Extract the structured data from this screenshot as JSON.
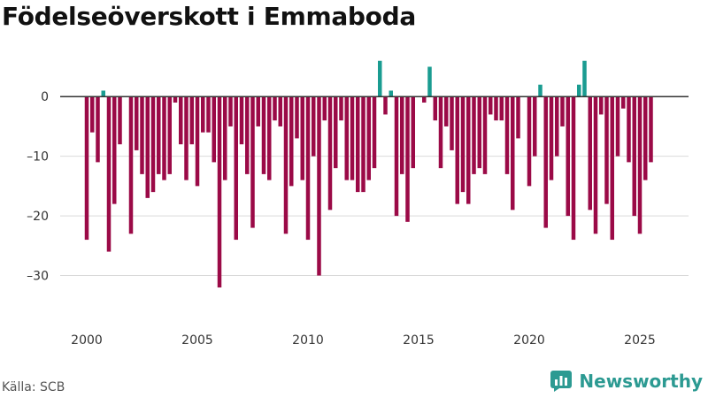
{
  "chart_data": {
    "type": "bar",
    "title": "Födelseöverskott i Emmaboda",
    "source": "Källa: SCB",
    "brand": "Newsworthy",
    "xlabel": "",
    "ylabel": "",
    "x_start": 2000.0,
    "x_step": 0.25,
    "xlim": [
      1998.8,
      2027.2
    ],
    "ylim": [
      -36,
      7
    ],
    "y_ticks": [
      0,
      -10,
      -20,
      -30
    ],
    "y_tick_labels": [
      "0",
      "–10",
      "–20",
      "–30"
    ],
    "x_ticks": [
      2000,
      2005,
      2010,
      2015,
      2020,
      2025
    ],
    "x_tick_labels": [
      "2000",
      "2005",
      "2010",
      "2015",
      "2020",
      "2025"
    ],
    "positive_color": "#1a9c91",
    "negative_color": "#9b0a47",
    "values": [
      -24,
      -6,
      -11,
      1,
      -26,
      -18,
      -8,
      0,
      -23,
      -9,
      -13,
      -17,
      -16,
      -13,
      -14,
      -13,
      -1,
      -8,
      -14,
      -8,
      -15,
      -6,
      -6,
      -11,
      -32,
      -14,
      -5,
      -24,
      -8,
      -13,
      -22,
      -5,
      -13,
      -14,
      -4,
      -5,
      -23,
      -15,
      -7,
      -14,
      -24,
      -10,
      -30,
      -4,
      -19,
      -12,
      -4,
      -14,
      -14,
      -16,
      -16,
      -14,
      -12,
      6,
      -3,
      1,
      -20,
      -13,
      -21,
      -12,
      0,
      -1,
      5,
      -4,
      -12,
      -5,
      -9,
      -18,
      -16,
      -18,
      -13,
      -12,
      -13,
      -3,
      -4,
      -4,
      -13,
      -19,
      -7,
      0,
      -15,
      -10,
      2,
      -22,
      -14,
      -10,
      -5,
      -20,
      -24,
      2,
      6,
      -19,
      -23,
      -3,
      -18,
      -24,
      -10,
      -2,
      -11,
      -20,
      -23,
      -14,
      -11
    ]
  }
}
